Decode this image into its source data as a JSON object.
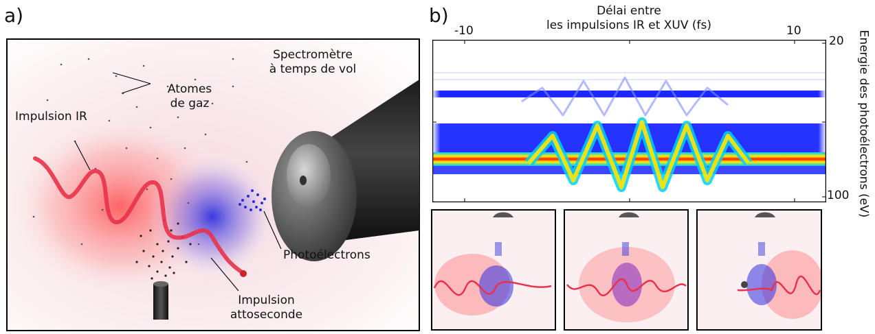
{
  "panel_a": {
    "letter": "a)",
    "labels": {
      "spectrometer_line1": "Spectromètre",
      "spectrometer_line2": "à temps de vol",
      "gas_atoms_line1": "Atomes",
      "gas_atoms_line2": "de gaz",
      "ir_pulse": "Impulsion IR",
      "photoelectrons": "Photoélectrons",
      "atto_line1": "Impulsion",
      "atto_line2": "attoseconde"
    }
  },
  "panel_b": {
    "letter": "b)",
    "top_axis_title_line1": "Délai entre",
    "top_axis_title_line2": "les impulsions IR et XUV (fs)",
    "top_ticks": [
      "-10",
      "10"
    ],
    "right_axis_title": "Energie des photoélectrons (eV)",
    "right_ticks": [
      "20",
      "100"
    ],
    "colors": {
      "low": "#ffffff",
      "mid_low": "#2030ff",
      "mid": "#00c8ff",
      "mid_high": "#ffee00",
      "high": "#ff1a00",
      "ir_red": "#e8324a",
      "xuv_blue": "#3a3ae0"
    }
  }
}
